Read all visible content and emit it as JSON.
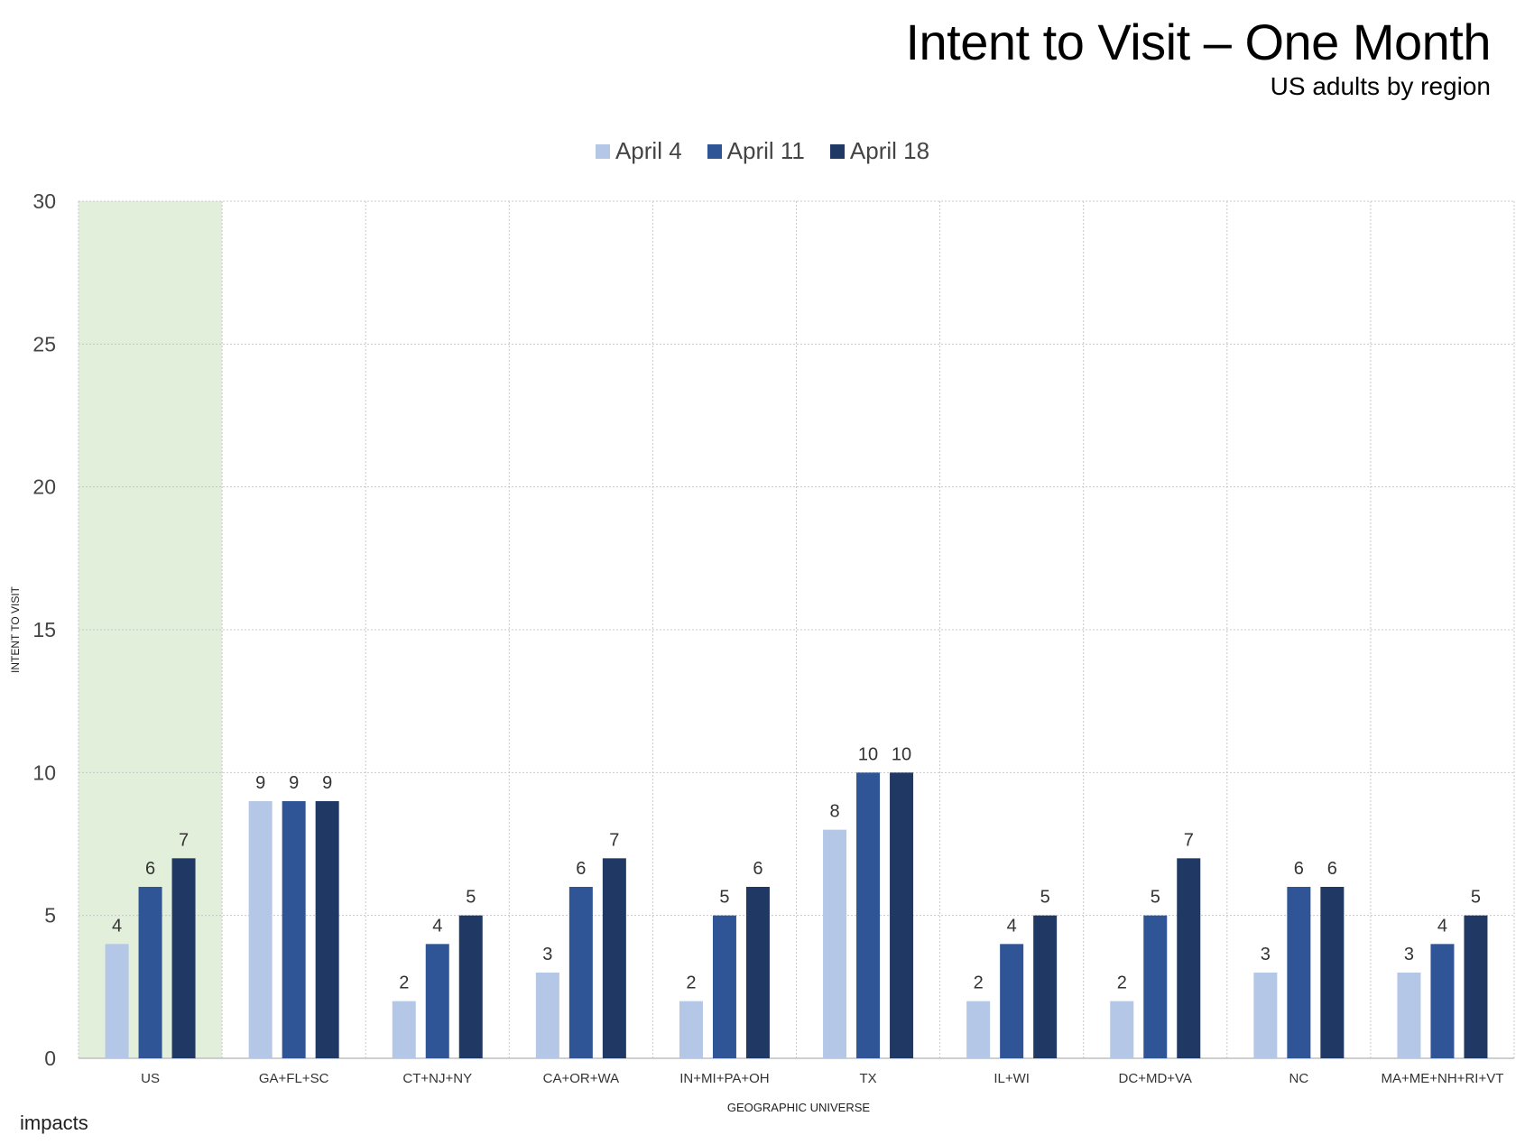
{
  "header": {
    "title": "Intent to Visit – One Month",
    "subtitle": "US adults by region"
  },
  "footer": {
    "logo_text": "impacts"
  },
  "colors": {
    "april4": "#b4c7e7",
    "april11": "#2f5597",
    "april18": "#1f3864",
    "highlight": "#e2efda",
    "grid": "#c8c8c8"
  },
  "chart_data": {
    "type": "bar",
    "title": "Intent to Visit – One Month",
    "subtitle": "US adults by region",
    "xlabel": "GEOGRAPHIC UNIVERSE",
    "ylabel": "INTENT TO VISIT",
    "ylim": [
      0,
      30
    ],
    "yticks": [
      "0",
      "5",
      "10",
      "15",
      "20",
      "25",
      "30"
    ],
    "grid": true,
    "legend_position": "top-center",
    "highlighted_category": "US",
    "categories": [
      "US",
      "GA+FL+SC",
      "CT+NJ+NY",
      "CA+OR+WA",
      "IN+MI+PA+OH",
      "TX",
      "IL+WI",
      "DC+MD+VA",
      "NC",
      "MA+ME+NH+RI+VT"
    ],
    "series": [
      {
        "name": "April 4",
        "values": [
          4,
          9,
          2,
          3,
          2,
          8,
          2,
          2,
          3,
          3
        ]
      },
      {
        "name": "April 11",
        "values": [
          6,
          9,
          4,
          6,
          5,
          10,
          4,
          5,
          6,
          4
        ]
      },
      {
        "name": "April 18",
        "values": [
          7,
          9,
          5,
          7,
          6,
          10,
          5,
          7,
          6,
          5
        ]
      }
    ]
  }
}
